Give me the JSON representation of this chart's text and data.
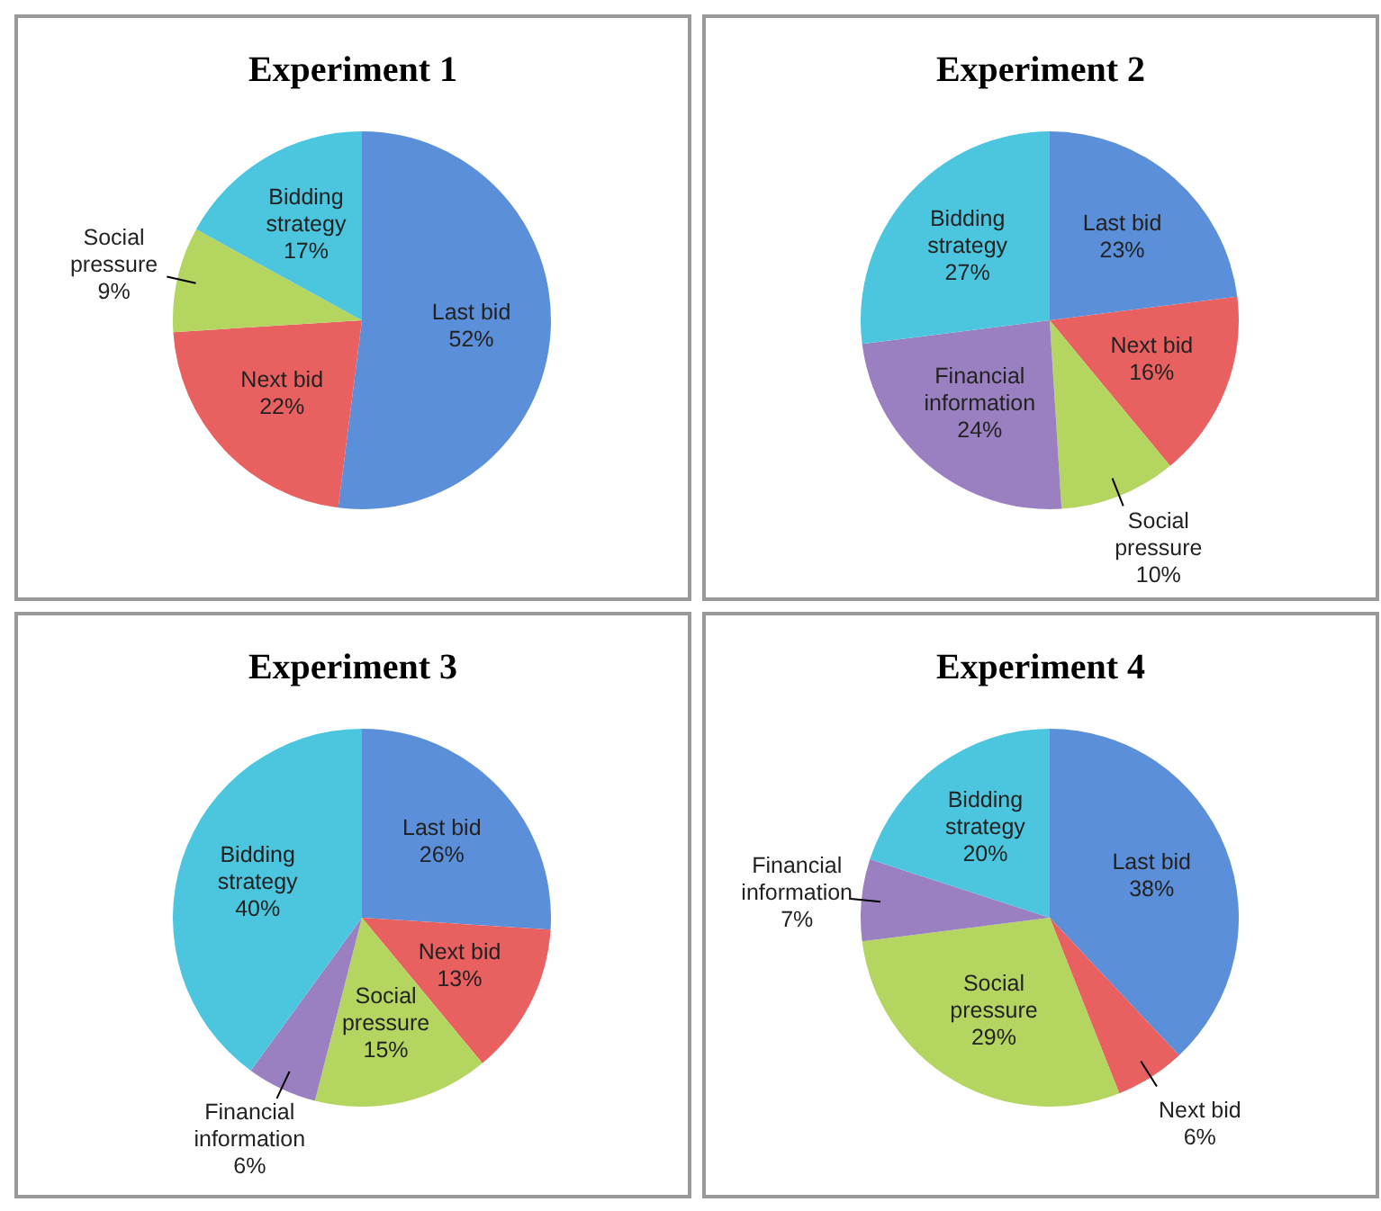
{
  "chart_data": [
    {
      "type": "pie",
      "title": "Experiment 1",
      "categories": [
        "Last bid",
        "Next bid",
        "Social pressure",
        "Bidding strategy"
      ],
      "values": [
        52,
        22,
        9,
        17
      ],
      "value_labels": [
        "52%",
        "22%",
        "9%",
        "17%"
      ],
      "colors": [
        "#5b8fd9",
        "#e8605f",
        "#b5d561",
        "#4bc6de"
      ],
      "legend": false
    },
    {
      "type": "pie",
      "title": "Experiment 2",
      "categories": [
        "Last bid",
        "Next bid",
        "Social pressure",
        "Financial information",
        "Bidding strategy"
      ],
      "values": [
        23,
        16,
        10,
        24,
        27
      ],
      "value_labels": [
        "23%",
        "16%",
        "10%",
        "24%",
        "27%"
      ],
      "colors": [
        "#5b8fd9",
        "#e8605f",
        "#b5d561",
        "#9a80c0",
        "#4bc6de"
      ],
      "legend": false
    },
    {
      "type": "pie",
      "title": "Experiment 3",
      "categories": [
        "Last bid",
        "Next bid",
        "Social pressure",
        "Financial information",
        "Bidding strategy"
      ],
      "values": [
        26,
        13,
        15,
        6,
        40
      ],
      "value_labels": [
        "26%",
        "13%",
        "15%",
        "6%",
        "40%"
      ],
      "colors": [
        "#5b8fd9",
        "#e8605f",
        "#b5d561",
        "#9a80c0",
        "#4bc6de"
      ],
      "legend": false
    },
    {
      "type": "pie",
      "title": "Experiment 4",
      "categories": [
        "Last bid",
        "Next bid",
        "Social pressure",
        "Financial information",
        "Bidding strategy"
      ],
      "values": [
        38,
        6,
        29,
        7,
        20
      ],
      "value_labels": [
        "38%",
        "6%",
        "29%",
        "7%",
        "20%"
      ],
      "colors": [
        "#5b8fd9",
        "#e8605f",
        "#b5d561",
        "#9a80c0",
        "#4bc6de"
      ],
      "legend": false
    }
  ]
}
